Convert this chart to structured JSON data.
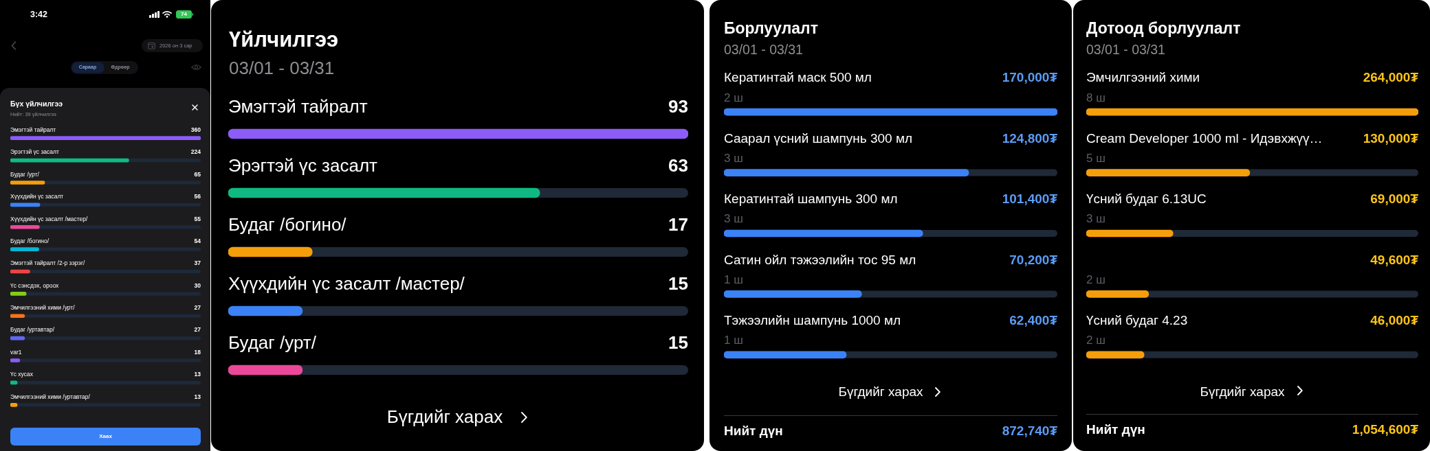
{
  "chart_data": [
    {
      "type": "bar",
      "orientation": "horizontal",
      "title": "Бүх үйлчилгээ",
      "subtitle": "Нийт: 39 үйлчилгээ",
      "categories": [
        "Эмэгтэй тайралт",
        "Эрэгтэй үс засалт",
        "Будаг /урт/",
        "Хүүхдийн үс засалт",
        "Хүүхдийн үс засалт /мастер/",
        "Будаг /богино/",
        "Эмэгтэй тайралт /2-р зэрэг/",
        "Үс сэнсдэх, ороох",
        "Эмчилгээний хими /урт/",
        "Будаг /уртавтар/",
        "var1",
        "Үс хусах",
        "Эмчилгээний хими /уртавтар/"
      ],
      "values": [
        360,
        224,
        65,
        56,
        55,
        54,
        37,
        30,
        27,
        27,
        18,
        13,
        13
      ],
      "colors": [
        "#8b5cf6",
        "#10b981",
        "#f59e0b",
        "#3b82f6",
        "#ec4899",
        "#06b6d4",
        "#ef4444",
        "#84cc16",
        "#f97316",
        "#6366f1",
        "#8b5cf6",
        "#10b981",
        "#f59e0b"
      ],
      "xlim": [
        0,
        360
      ],
      "data_labels": true,
      "tick_labels": "y",
      "annotations": [
        "3:42",
        "74",
        "2026 он 3 сар",
        "Сараар",
        "Өдрөөр",
        "Хаах"
      ]
    },
    {
      "type": "bar",
      "orientation": "horizontal",
      "title": "Үйлчилгээ",
      "subtitle": "03/01 - 03/31",
      "categories": [
        "Эмэгтэй тайралт",
        "Эрэгтэй үс засалт",
        "Будаг /богино/",
        "Хүүхдийн үс засалт /мастер/",
        "Будаг /урт/"
      ],
      "values": [
        93,
        63,
        17,
        15,
        15
      ],
      "colors": [
        "#8b5cf6",
        "#10b981",
        "#f59e0b",
        "#3b82f6",
        "#ec4899"
      ],
      "xlim": [
        0,
        93
      ],
      "data_labels": true,
      "tick_labels": "y",
      "annotations": [
        "Бүгдийг харах"
      ]
    },
    {
      "type": "bar",
      "orientation": "horizontal",
      "title": "Борлуулалт",
      "subtitle": "03/01 - 03/31",
      "categories": [
        "Кератинтай маск 500 мл",
        "Саарал үсний шампунь 300 мл",
        "Кератинтай шампунь 300 мл",
        "Сатин ойл тэжээлийн тос 95 мл",
        "Тэжээлийн шампунь 1000 мл"
      ],
      "values": [
        170000,
        124800,
        101400,
        70200,
        62400
      ],
      "color": "#3b82f6",
      "value_labels": [
        "170,000₮",
        "124,800₮",
        "101,400₮",
        "70,200₮",
        "62,400₮"
      ],
      "xlim": [
        0,
        170000
      ],
      "tick_labels": "y",
      "annotations": [
        "2 ш",
        "3 ш",
        "3 ш",
        "1 ш",
        "1 ш",
        "Бүгдийг харах",
        "Нийт дүн",
        "872,740₮"
      ]
    },
    {
      "type": "bar",
      "orientation": "horizontal",
      "title": "Дотоод борлуулалт",
      "subtitle": "03/01 - 03/31",
      "categories": [
        "Эмчилгээний хими",
        "Cream Developer 1000 ml - Идэвхжүү…",
        "Үсний будаг 6.13UC",
        null,
        "Үсний будаг 4.23"
      ],
      "values": [
        264000,
        130000,
        69000,
        49600,
        46000
      ],
      "color": "#f59e0b",
      "value_labels": [
        "264,000₮",
        "130,000₮",
        "69,000₮",
        "49,600₮",
        "46,000₮"
      ],
      "xlim": [
        0,
        264000
      ],
      "tick_labels": "y",
      "annotations": [
        "8 ш",
        "5 ш",
        "3 ш",
        "2 ш",
        "2 ш",
        "Бүгдийг харах",
        "Нийт дүн",
        "1,054,600₮"
      ]
    }
  ]
}
